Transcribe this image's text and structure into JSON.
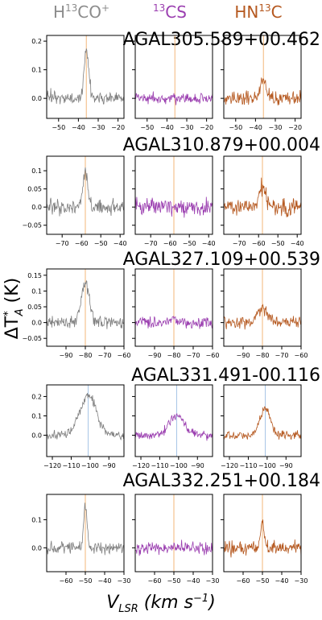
{
  "figure": {
    "column_headers": [
      {
        "base": "H",
        "sup": "13",
        "rest": "CO",
        "sup2": "+",
        "color": "#8c8c8c"
      },
      {
        "base": "",
        "sup": "13",
        "rest": "CS",
        "sup2": "",
        "color": "#9b3fb0"
      },
      {
        "base": "HN",
        "sup": "13",
        "rest": "C",
        "sup2": "",
        "color": "#b5581f"
      }
    ],
    "ylabel": "ΔT*A (K)",
    "xlabel": "VLSR (km s−1)"
  },
  "chart_data": [
    {
      "type": "line",
      "source": "AGAL305.589+00.462",
      "xlim": [
        -56,
        -17
      ],
      "ylim": [
        -0.07,
        0.22
      ],
      "xticks": [
        -50,
        -40,
        -30,
        -20
      ],
      "yticks": [
        0.0,
        0.1,
        0.2
      ],
      "vline": -36,
      "vline_color": "#f3b77a",
      "series": [
        {
          "species": "H13CO+",
          "color": "#7f7f7f",
          "noise": 0.022,
          "peak": 0.17,
          "width": 1.2,
          "center": -36,
          "seed": 11
        },
        {
          "species": "13CS",
          "color": "#9b3fb0",
          "noise": 0.018,
          "peak": 0.0,
          "width": 1.2,
          "center": -36,
          "seed": 12
        },
        {
          "species": "HN13C",
          "color": "#b5581f",
          "noise": 0.025,
          "peak": 0.06,
          "width": 1.6,
          "center": -36,
          "seed": 13
        }
      ]
    },
    {
      "type": "line",
      "source": "AGAL310.879+00.004",
      "xlim": [
        -78,
        -38
      ],
      "ylim": [
        -0.075,
        0.14
      ],
      "xticks": [
        -70,
        -60,
        -50,
        -40
      ],
      "yticks": [
        -0.05,
        0.0,
        0.05,
        0.1
      ],
      "vline": -58,
      "vline_color": "#f3b77a",
      "series": [
        {
          "species": "H13CO+",
          "color": "#7f7f7f",
          "noise": 0.022,
          "peak": 0.1,
          "width": 1.3,
          "center": -58,
          "seed": 21
        },
        {
          "species": "13CS",
          "color": "#9b3fb0",
          "noise": 0.024,
          "peak": 0.0,
          "width": 1.3,
          "center": -58,
          "seed": 22
        },
        {
          "species": "HN13C",
          "color": "#b5581f",
          "noise": 0.022,
          "peak": 0.05,
          "width": 1.8,
          "center": -58,
          "seed": 23
        }
      ]
    },
    {
      "type": "line",
      "source": "AGAL327.109+00.539",
      "xlim": [
        -100,
        -60
      ],
      "ylim": [
        -0.075,
        0.17
      ],
      "xticks": [
        -90,
        -80,
        -70,
        -60
      ],
      "yticks": [
        -0.05,
        0.0,
        0.05,
        0.1,
        0.15
      ],
      "vline": -80,
      "vline_color": "#f3b77a",
      "series": [
        {
          "species": "H13CO+",
          "color": "#7f7f7f",
          "noise": 0.02,
          "peak": 0.12,
          "width": 2.2,
          "center": -80,
          "seed": 31
        },
        {
          "species": "13CS",
          "color": "#9b3fb0",
          "noise": 0.017,
          "peak": 0.01,
          "width": 2.0,
          "center": -80,
          "seed": 32
        },
        {
          "species": "HN13C",
          "color": "#b5581f",
          "noise": 0.017,
          "peak": 0.045,
          "width": 2.6,
          "center": -80,
          "seed": 33
        }
      ]
    },
    {
      "type": "line",
      "source": "AGAL331.491-00.116",
      "xlim": [
        -123,
        -82
      ],
      "ylim": [
        -0.11,
        0.26
      ],
      "xticks": [
        -120,
        -110,
        -100,
        -90
      ],
      "yticks": [
        0.0,
        0.1,
        0.2
      ],
      "vline": -101,
      "vline_color": "#a8c6e6",
      "series": [
        {
          "species": "H13CO+",
          "color": "#7f7f7f",
          "noise": 0.022,
          "peak": 0.2,
          "width": 4.5,
          "center": -101,
          "seed": 41
        },
        {
          "species": "13CS",
          "color": "#9b3fb0",
          "noise": 0.02,
          "peak": 0.1,
          "width": 4.0,
          "center": -101,
          "seed": 42
        },
        {
          "species": "HN13C",
          "color": "#b5581f",
          "noise": 0.02,
          "peak": 0.14,
          "width": 2.6,
          "center": -101,
          "seed": 43
        }
      ]
    },
    {
      "type": "line",
      "source": "AGAL332.251+00.184",
      "xlim": [
        -70,
        -30
      ],
      "ylim": [
        -0.085,
        0.19
      ],
      "xticks": [
        -60,
        -50,
        -40,
        -30
      ],
      "yticks": [
        0.0,
        0.1
      ],
      "vline": -50,
      "vline_color": "#f3b77a",
      "series": [
        {
          "species": "H13CO+",
          "color": "#7f7f7f",
          "noise": 0.02,
          "peak": 0.15,
          "width": 0.9,
          "center": -50,
          "seed": 51
        },
        {
          "species": "13CS",
          "color": "#9b3fb0",
          "noise": 0.02,
          "peak": 0.0,
          "width": 1.0,
          "center": -50,
          "seed": 52
        },
        {
          "species": "HN13C",
          "color": "#b5581f",
          "noise": 0.022,
          "peak": 0.08,
          "width": 1.0,
          "center": -50,
          "seed": 53
        }
      ]
    }
  ]
}
